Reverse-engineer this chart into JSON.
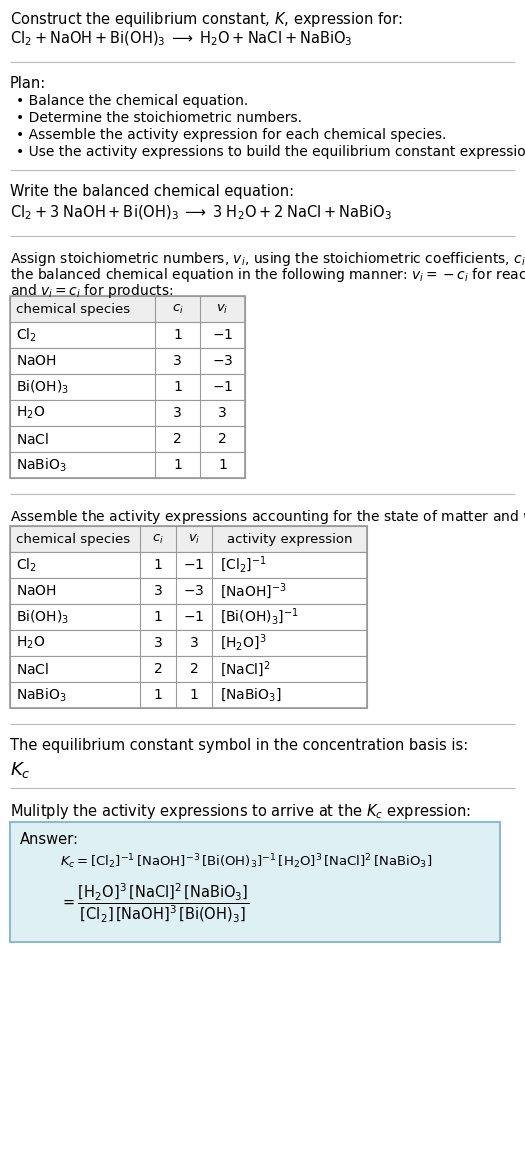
{
  "bg_color": "#ffffff",
  "title_line1": "Construct the equilibrium constant, $K$, expression for:",
  "title_line2": "$\\mathrm{Cl_2 + NaOH + Bi(OH)_3 \\;\\longrightarrow\\; H_2O + NaCl + NaBiO_3}$",
  "plan_header": "Plan:",
  "plan_bullets": [
    "Balance the chemical equation.",
    "Determine the stoichiometric numbers.",
    "Assemble the activity expression for each chemical species.",
    "Use the activity expressions to build the equilibrium constant expression."
  ],
  "balanced_header": "Write the balanced chemical equation:",
  "balanced_eq": "$\\mathrm{Cl_2 + 3\\;NaOH + Bi(OH)_3 \\;\\longrightarrow\\; 3\\;H_2O + 2\\;NaCl + NaBiO_3}$",
  "stoich_intro1": "Assign stoichiometric numbers, $v_i$, using the stoichiometric coefficients, $c_i$, from",
  "stoich_intro2": "the balanced chemical equation in the following manner: $v_i = -c_i$ for reactants",
  "stoich_intro3": "and $v_i = c_i$ for products:",
  "table1_headers": [
    "chemical species",
    "$c_i$",
    "$v_i$"
  ],
  "table1_rows": [
    [
      "$\\mathrm{Cl_2}$",
      "1",
      "$-1$"
    ],
    [
      "$\\mathrm{NaOH}$",
      "3",
      "$-3$"
    ],
    [
      "$\\mathrm{Bi(OH)_3}$",
      "1",
      "$-1$"
    ],
    [
      "$\\mathrm{H_2O}$",
      "3",
      "3"
    ],
    [
      "$\\mathrm{NaCl}$",
      "2",
      "2"
    ],
    [
      "$\\mathrm{NaBiO_3}$",
      "1",
      "1"
    ]
  ],
  "activity_intro": "Assemble the activity expressions accounting for the state of matter and $v_i$:",
  "table2_headers": [
    "chemical species",
    "$c_i$",
    "$v_i$",
    "activity expression"
  ],
  "table2_rows": [
    [
      "$\\mathrm{Cl_2}$",
      "1",
      "$-1$",
      "$[\\mathrm{Cl_2}]^{-1}$"
    ],
    [
      "$\\mathrm{NaOH}$",
      "3",
      "$-3$",
      "$[\\mathrm{NaOH}]^{-3}$"
    ],
    [
      "$\\mathrm{Bi(OH)_3}$",
      "1",
      "$-1$",
      "$[\\mathrm{Bi(OH)_3}]^{-1}$"
    ],
    [
      "$\\mathrm{H_2O}$",
      "3",
      "3",
      "$[\\mathrm{H_2O}]^3$"
    ],
    [
      "$\\mathrm{NaCl}$",
      "2",
      "2",
      "$[\\mathrm{NaCl}]^2$"
    ],
    [
      "$\\mathrm{NaBiO_3}$",
      "1",
      "1",
      "$[\\mathrm{NaBiO_3}]$"
    ]
  ],
  "Kc_intro": "The equilibrium constant symbol in the concentration basis is:",
  "Kc_symbol": "$K_c$",
  "multiply_intro": "Mulitply the activity expressions to arrive at the $K_c$ expression:",
  "answer_label": "Answer:",
  "answer_line1": "$K_c = [\\mathrm{Cl_2}]^{-1}\\,[\\mathrm{NaOH}]^{-3}\\,[\\mathrm{Bi(OH)_3}]^{-1}\\,[\\mathrm{H_2O}]^3\\,[\\mathrm{NaCl}]^2\\,[\\mathrm{NaBiO_3}]$",
  "answer_eq_lhs": "$= \\dfrac{[\\mathrm{H_2O}]^3\\,[\\mathrm{NaCl}]^2\\,[\\mathrm{NaBiO_3}]}{[\\mathrm{Cl_2}]\\,[\\mathrm{NaOH}]^3\\,[\\mathrm{Bi(OH)_3}]}$",
  "answer_box_color": "#dff0f5",
  "answer_box_border": "#8bbccc",
  "sep_color": "#bbbbbb",
  "table_border_color": "#999999",
  "header_bg": "#eeeeee"
}
